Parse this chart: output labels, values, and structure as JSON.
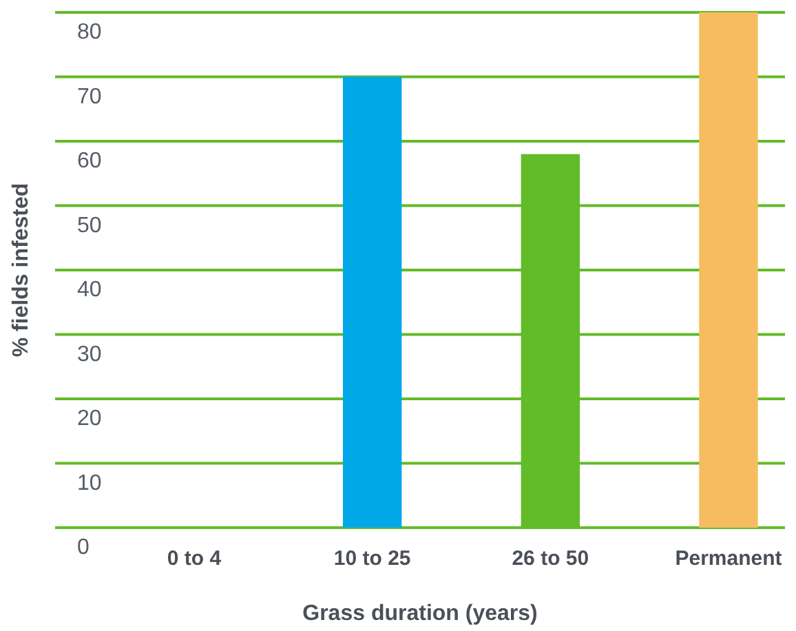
{
  "chart_data": {
    "type": "bar",
    "xlabel": "Grass duration (years)",
    "ylabel": "% fields infested",
    "categories": [
      "0 to 4",
      "10 to 25",
      "26 to 50",
      "Permanent"
    ],
    "values": [
      0,
      70,
      58,
      80
    ],
    "colors": [
      "#00a8e8",
      "#00a8e8",
      "#62bb28",
      "#f5bd60"
    ],
    "ylim": [
      0,
      80
    ],
    "yticks": [
      0,
      10,
      20,
      30,
      40,
      50,
      60,
      70,
      80
    ],
    "grid": "y"
  }
}
